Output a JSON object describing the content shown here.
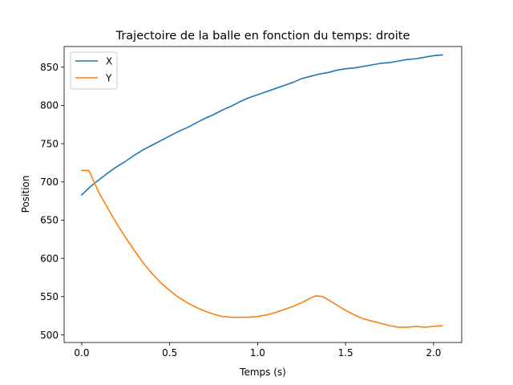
{
  "chart_data": {
    "type": "line",
    "title": "Trajectoire de la balle en fonction du temps: droite",
    "xlabel": "Temps (s)",
    "ylabel": "Position",
    "xlim": [
      -0.1,
      2.16
    ],
    "ylim": [
      490,
      877
    ],
    "xticks": [
      0.0,
      0.5,
      1.0,
      1.5,
      2.0
    ],
    "xtick_labels": [
      "0.0",
      "0.5",
      "1.0",
      "1.5",
      "2.0"
    ],
    "yticks": [
      500,
      550,
      600,
      650,
      700,
      750,
      800,
      850
    ],
    "ytick_labels": [
      "500",
      "550",
      "600",
      "650",
      "700",
      "750",
      "800",
      "850"
    ],
    "grid": false,
    "legend_position": "upper-left",
    "series": [
      {
        "name": "X",
        "color": "#1f77b4",
        "x": [
          0.0,
          0.05,
          0.1,
          0.15,
          0.2,
          0.25,
          0.3,
          0.35,
          0.4,
          0.45,
          0.5,
          0.55,
          0.6,
          0.65,
          0.7,
          0.75,
          0.8,
          0.85,
          0.9,
          0.95,
          1.0,
          1.05,
          1.1,
          1.15,
          1.2,
          1.25,
          1.3,
          1.35,
          1.4,
          1.45,
          1.5,
          1.55,
          1.6,
          1.65,
          1.7,
          1.75,
          1.8,
          1.85,
          1.9,
          1.95,
          2.0,
          2.05
        ],
        "y": [
          683,
          694,
          703,
          712,
          720,
          727,
          735,
          742,
          748,
          754,
          760,
          766,
          771,
          777,
          783,
          788,
          794,
          799,
          805,
          810,
          814,
          818,
          822,
          826,
          830,
          835,
          838,
          841,
          843,
          846,
          848,
          849,
          851,
          853,
          855,
          856,
          858,
          860,
          861,
          863,
          865,
          866
        ]
      },
      {
        "name": "Y",
        "color": "#ff7f0e",
        "x": [
          0.0,
          0.04,
          0.1,
          0.15,
          0.2,
          0.25,
          0.3,
          0.35,
          0.4,
          0.45,
          0.5,
          0.55,
          0.6,
          0.65,
          0.7,
          0.75,
          0.8,
          0.85,
          0.9,
          0.95,
          1.0,
          1.05,
          1.1,
          1.15,
          1.2,
          1.25,
          1.3,
          1.33,
          1.37,
          1.4,
          1.45,
          1.5,
          1.55,
          1.6,
          1.65,
          1.7,
          1.75,
          1.8,
          1.85,
          1.9,
          1.95,
          2.0,
          2.05
        ],
        "y": [
          715,
          715,
          685,
          665,
          645,
          627,
          610,
          594,
          580,
          568,
          558,
          549,
          542,
          536,
          531,
          527,
          524,
          523,
          523,
          523,
          524,
          526,
          529,
          533,
          537,
          542,
          548,
          551,
          550,
          546,
          539,
          532,
          526,
          521,
          518,
          515,
          512,
          510,
          510,
          511,
          510,
          511,
          512
        ]
      }
    ]
  }
}
